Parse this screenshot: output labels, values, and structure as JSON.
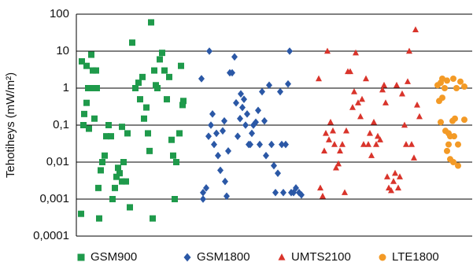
{
  "chart_data": {
    "type": "scatter",
    "y_label": "Tehotiheys (mW/m²)",
    "xlim": [
      0,
      503
    ],
    "ylim": [
      0.0001,
      100
    ],
    "log_y": true,
    "yticks": [
      100,
      10,
      1,
      {
        "value": 0.1,
        "label": "0,1"
      },
      {
        "value": 0.01,
        "label": "0,01"
      },
      {
        "value": 0.001,
        "label": "0,001"
      },
      {
        "value": 0.0001,
        "label": "0,0001"
      }
    ],
    "grid": true,
    "legend": "bottom",
    "series": [
      {
        "name": "GSM900",
        "color": "#1f9a4b",
        "marker": "square",
        "x": [
          7,
          13,
          19,
          21,
          25,
          15,
          21,
          26,
          13,
          10,
          9,
          16,
          23,
          6,
          29,
          28,
          31,
          33,
          36,
          38,
          41,
          44,
          46,
          49,
          51,
          53,
          55,
          58,
          60,
          63,
          58,
          65,
          68,
          71,
          75,
          79,
          81,
          84,
          86,
          89,
          91,
          93,
          95,
          97,
          99,
          101,
          103,
          106,
          109,
          112,
          115,
          118,
          121,
          123,
          125,
          127,
          131,
          133,
          135,
          136
        ],
        "values": [
          5.3,
          4,
          8,
          3,
          3,
          1,
          1,
          1,
          0.4,
          0.2,
          0.1,
          0.08,
          0.15,
          0.0004,
          0.0003,
          0.002,
          0.006,
          0.01,
          0.015,
          0.05,
          0.1,
          0.05,
          0.001,
          0.002,
          0.004,
          0.007,
          0.005,
          0.003,
          0.01,
          0.003,
          0.09,
          0.06,
          0.0006,
          17,
          1,
          1.4,
          0.5,
          2,
          0.15,
          0.3,
          0.06,
          0.02,
          60,
          0.0003,
          3,
          1.2,
          1,
          6,
          9,
          3,
          0.5,
          2,
          0.04,
          0.015,
          0.001,
          0.01,
          0.06,
          4,
          0.35,
          0.45
        ]
      },
      {
        "name": "GSM1800",
        "color": "#2b58a6",
        "marker": "diamond",
        "x": [
          159,
          169,
          161,
          161,
          165,
          168,
          171,
          173,
          175,
          178,
          180,
          183,
          186,
          188,
          189,
          191,
          193,
          195,
          198,
          201,
          203,
          205,
          208,
          209,
          211,
          213,
          215,
          217,
          219,
          221,
          223,
          225,
          228,
          231,
          233,
          236,
          239,
          241,
          245,
          248,
          251,
          253,
          256,
          259,
          261,
          263,
          266,
          269,
          271,
          273,
          276,
          279,
          283,
          286
        ],
        "values": [
          1.8,
          10,
          0.0015,
          0.001,
          0.002,
          0.05,
          0.1,
          0.2,
          0.03,
          0.06,
          0.015,
          0.006,
          0.07,
          0.13,
          0.003,
          0.0012,
          0.02,
          2.6,
          2.6,
          7,
          0.4,
          0.05,
          0.15,
          0.7,
          0.3,
          0.5,
          0.1,
          0.2,
          0.03,
          0.03,
          0.06,
          0.1,
          0.12,
          0.25,
          0.03,
          0.8,
          0.13,
          0.015,
          1.2,
          0.03,
          0.008,
          0.0015,
          0.005,
          0.8,
          0.03,
          0.0015,
          0.03,
          1.3,
          10,
          0.0015,
          0.0015,
          0.002,
          0.0015,
          0.0013
        ]
      },
      {
        "name": "UMTS2100",
        "color": "#d9342b",
        "marker": "triangle",
        "x": [
          308,
          310,
          313,
          315,
          317,
          319,
          321,
          323,
          326,
          328,
          330,
          333,
          335,
          338,
          341,
          343,
          345,
          348,
          351,
          353,
          355,
          358,
          361,
          363,
          365,
          368,
          371,
          373,
          375,
          378,
          381,
          383,
          386,
          389,
          391,
          393,
          395,
          397,
          400,
          403,
          405,
          407,
          409,
          411,
          414,
          417,
          419,
          421,
          423,
          426,
          429,
          431,
          433,
          436
        ],
        "values": [
          1.8,
          0.002,
          0.0012,
          0.02,
          0.06,
          10,
          0.04,
          0.12,
          0.07,
          0.03,
          0.007,
          0.009,
          0.02,
          0.03,
          0.0015,
          0.07,
          2.8,
          2.8,
          0.3,
          0.8,
          9,
          0.4,
          0.17,
          0.5,
          0.03,
          1.8,
          0.03,
          0.06,
          0.015,
          0.12,
          0.03,
          0.05,
          0.04,
          0.9,
          1.2,
          0.4,
          0.004,
          0.002,
          0.0017,
          0.003,
          0.005,
          1.2,
          0.002,
          0.004,
          0.7,
          0.1,
          0.03,
          1.5,
          10,
          0.03,
          0.013,
          38,
          0.35,
          0.17
        ]
      },
      {
        "name": "LTE1800",
        "color": "#f39a26",
        "marker": "circle",
        "x": [
          459,
          463,
          465,
          468,
          471,
          479,
          483,
          488,
          493,
          461,
          465,
          463,
          469,
          473,
          478,
          481,
          493,
          475,
          480,
          485,
          473,
          475,
          479,
          485,
          471
        ],
        "values": [
          1.2,
          1.4,
          1.8,
          1,
          1.6,
          1.8,
          1,
          1.5,
          1.1,
          0.45,
          0.55,
          0.12,
          0.07,
          0.06,
          0.13,
          0.15,
          0.14,
          0.05,
          0.05,
          0.03,
          0.03,
          0.012,
          0.01,
          0.008,
          0.02
        ]
      }
    ]
  }
}
